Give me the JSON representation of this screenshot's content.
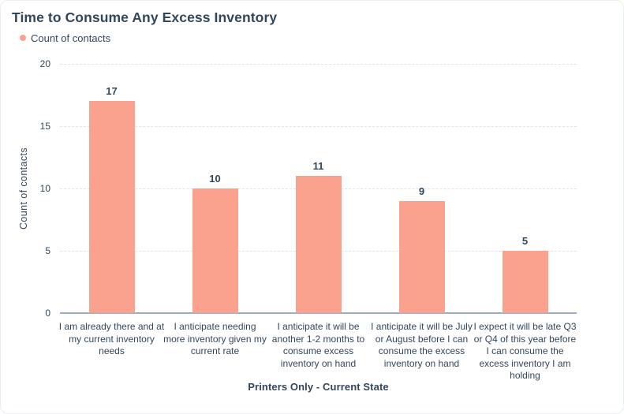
{
  "card": {
    "title": "Time to Consume Any Excess Inventory",
    "legend": [
      {
        "label": "Count of contacts",
        "color": "#faa28e"
      }
    ]
  },
  "chart_data": {
    "type": "bar",
    "title": "Time to Consume Any Excess Inventory",
    "categories": [
      "I am already there and at my current inventory needs",
      "I anticipate needing more inventory given my current rate",
      "I anticipate it will be another 1-2 months to consume excess inventory on hand",
      "I anticipate it will be July or August before I can consume the excess inventory on hand",
      "I expect it will be late Q3 or Q4 of this year before I can consume the excess inventory I am holding"
    ],
    "series": [
      {
        "name": "Count of contacts",
        "values": [
          17,
          10,
          11,
          9,
          5
        ]
      }
    ],
    "xlabel": "Printers Only - Current State",
    "ylabel": "Count of contacts",
    "ylim": [
      0,
      20
    ],
    "yticks": [
      0,
      5,
      10,
      15,
      20
    ],
    "bar_color": "#faa28e",
    "grid": "dashed-horizontal",
    "legend_position": "top-left",
    "colors": {
      "text": "#33475b",
      "gridline": "#dde4ec",
      "axis_line": "#9aafc7"
    }
  }
}
